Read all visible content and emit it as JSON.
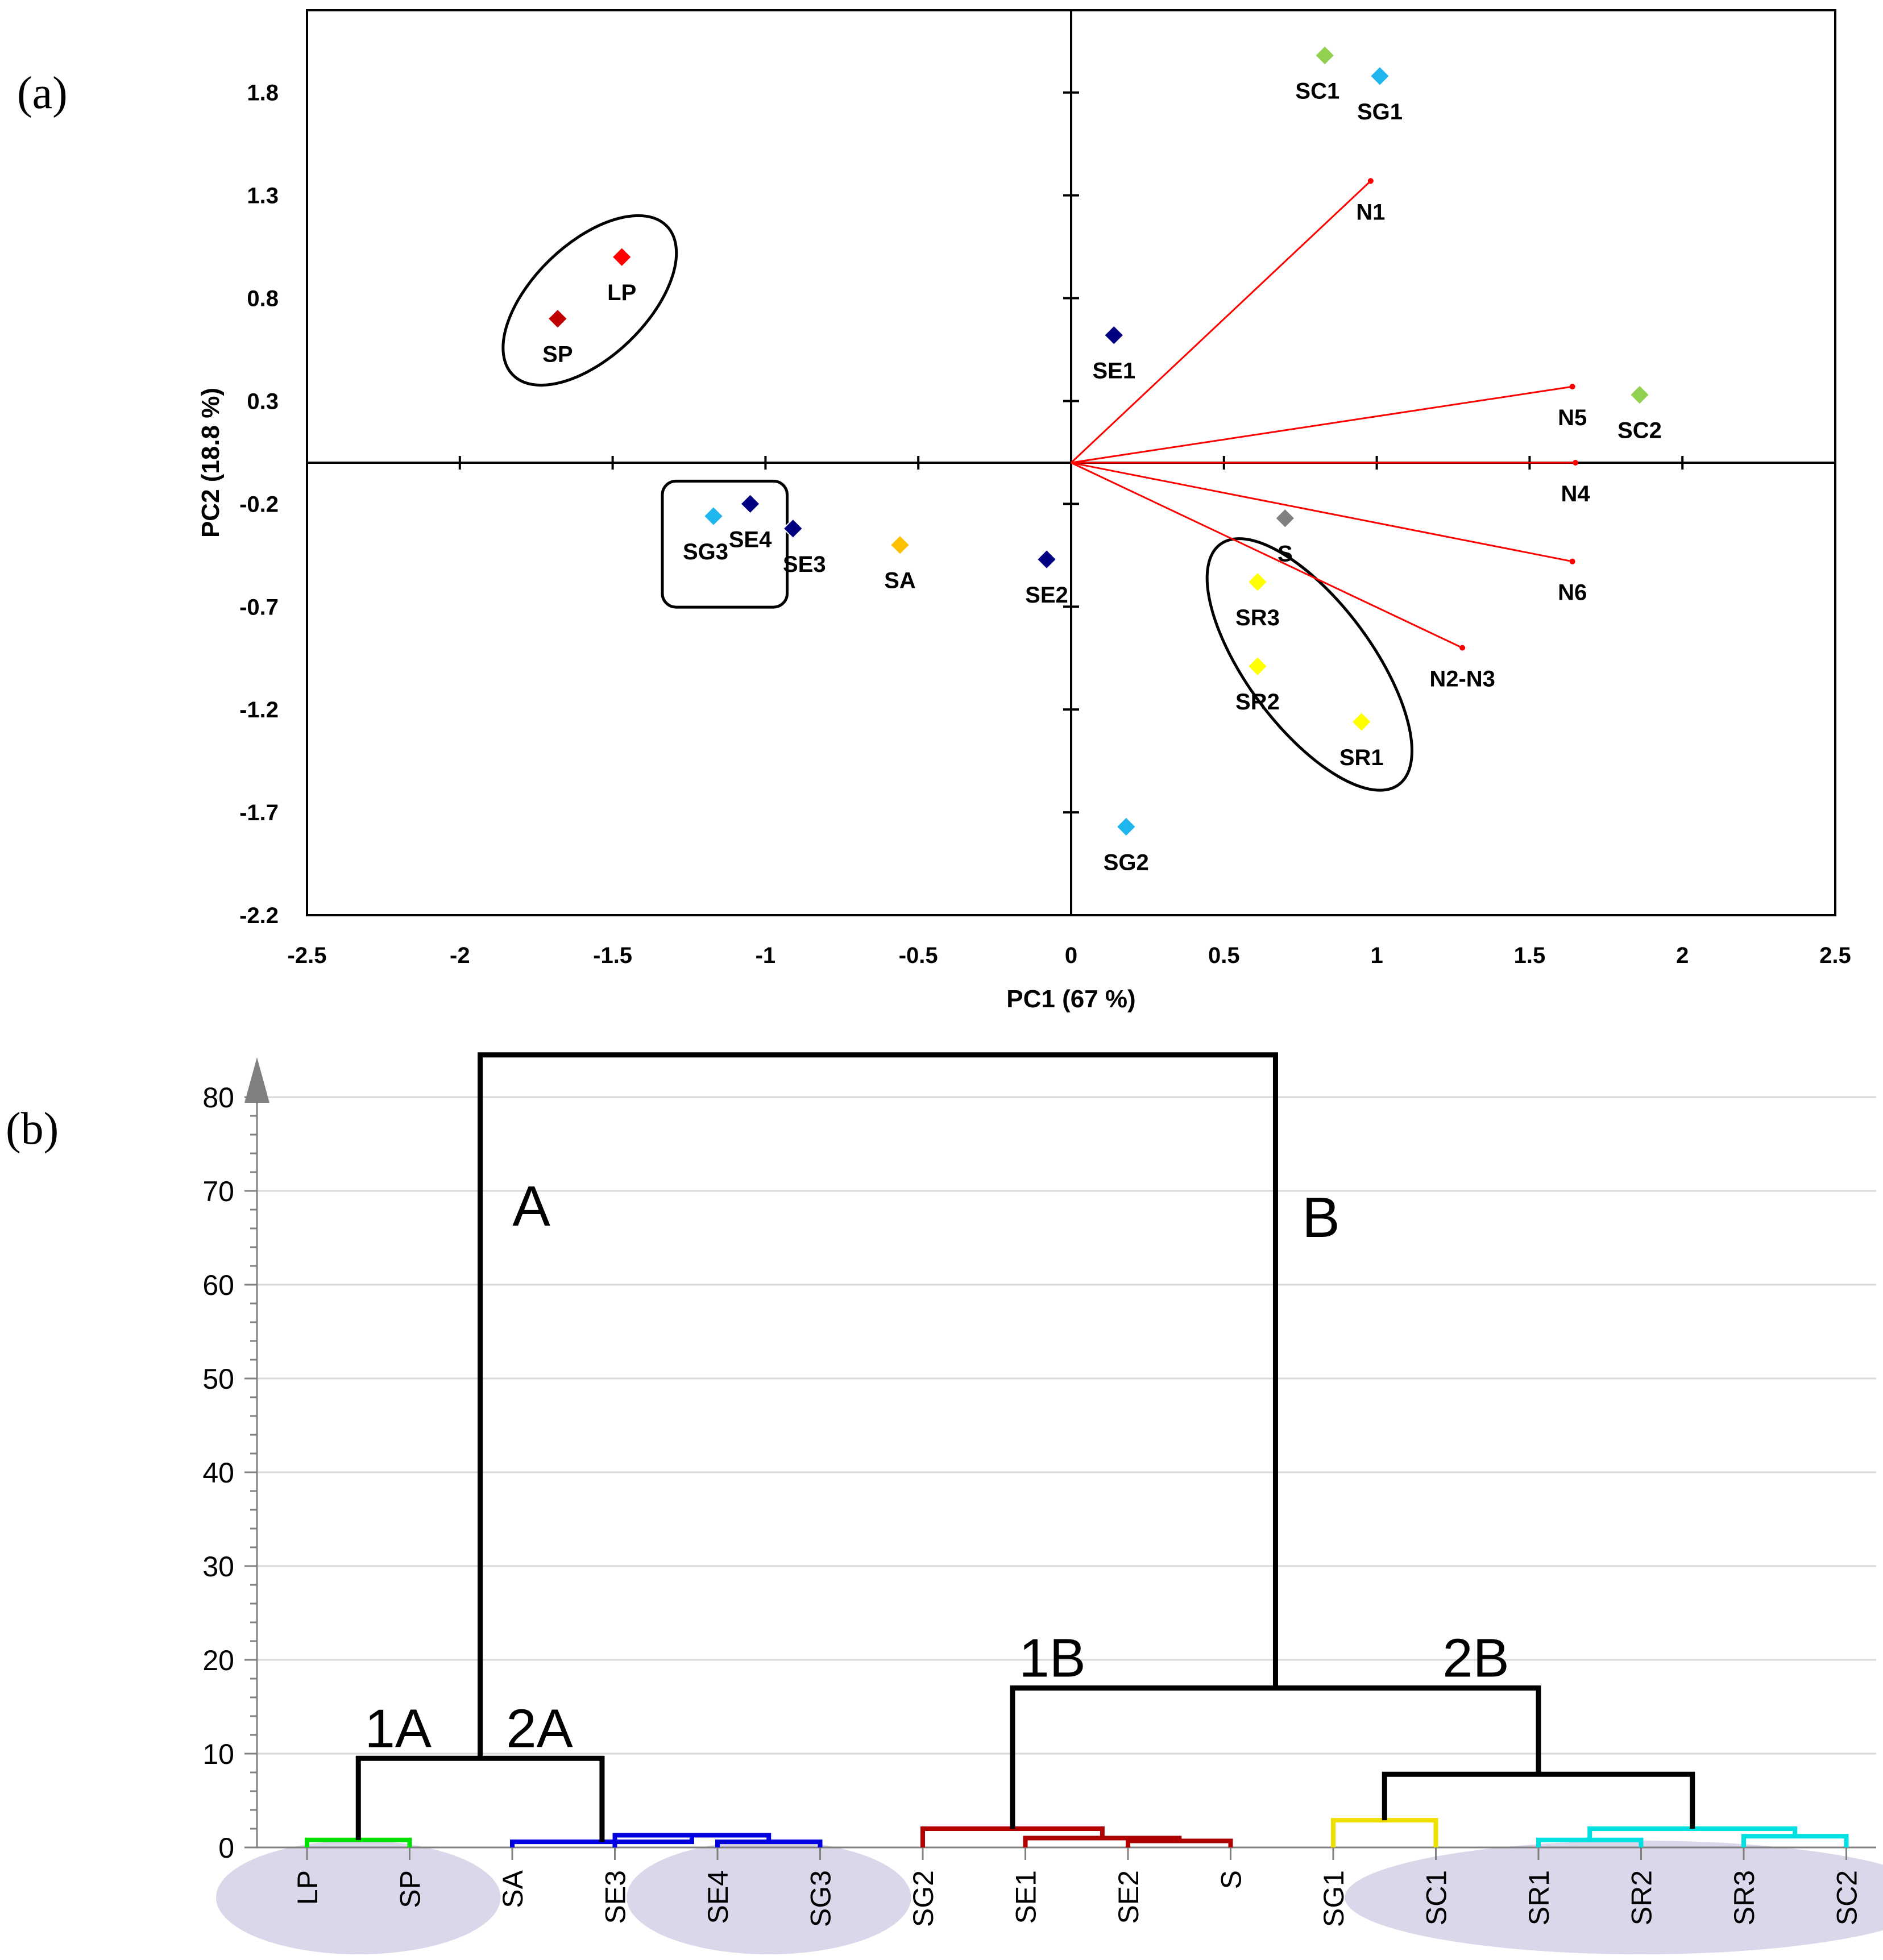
{
  "chart_data": [
    {
      "type": "scatter",
      "panel_label": "(a)",
      "title": "",
      "xlabel": "PC1 (67 %)",
      "ylabel": "PC2 (18.8 %)",
      "xlim": [
        -2.5,
        2.5
      ],
      "ylim": [
        -2.2,
        2.2
      ],
      "xticks": [
        -2.5,
        -2,
        -1.5,
        -1,
        -0.5,
        0,
        0.5,
        1,
        1.5,
        2,
        2.5
      ],
      "xtick_labels": [
        "-2.5",
        "-2",
        "-1.5",
        "-1",
        "-0.5",
        "0",
        "0.5",
        "1",
        "1.5",
        "2",
        "2.5"
      ],
      "yticks": [
        1.8,
        1.3,
        0.8,
        0.3,
        -0.2,
        -0.7,
        -1.2,
        -1.7,
        -2.2
      ],
      "ytick_labels": [
        "1.8",
        "1.3",
        "0.8",
        "0.3",
        "-0.2",
        "-0.7",
        "-1.2",
        "-1.7",
        "-2.2"
      ],
      "points": [
        {
          "label": "SC1",
          "x": 0.83,
          "y": 1.98,
          "color": "#92d050",
          "label_pos": "below-left"
        },
        {
          "label": "SG1",
          "x": 1.01,
          "y": 1.88,
          "color": "#1fb5ef",
          "label_pos": "below"
        },
        {
          "label": "LP",
          "x": -1.47,
          "y": 1.0,
          "color": "#ff0000",
          "label_pos": "below"
        },
        {
          "label": "SP",
          "x": -1.68,
          "y": 0.7,
          "color": "#c00000",
          "label_pos": "below"
        },
        {
          "label": "SE1",
          "x": 0.14,
          "y": 0.62,
          "color": "#000080",
          "label_pos": "below"
        },
        {
          "label": "SC2",
          "x": 1.86,
          "y": 0.33,
          "color": "#92d050",
          "label_pos": "below"
        },
        {
          "label": "SG3",
          "x": -1.17,
          "y": -0.26,
          "color": "#1fb5ef",
          "label_pos": "below-left"
        },
        {
          "label": "SE4",
          "x": -1.05,
          "y": -0.2,
          "color": "#000080",
          "label_pos": "below"
        },
        {
          "label": "SE3",
          "x": -0.91,
          "y": -0.32,
          "color": "#000080",
          "label_pos": "below-right"
        },
        {
          "label": "SA",
          "x": -0.56,
          "y": -0.4,
          "color": "#ffc000",
          "label_pos": "below"
        },
        {
          "label": "SE2",
          "x": -0.08,
          "y": -0.47,
          "color": "#000080",
          "label_pos": "below"
        },
        {
          "label": "S",
          "x": 0.7,
          "y": -0.27,
          "color": "#808080",
          "label_pos": "below"
        },
        {
          "label": "SR3",
          "x": 0.61,
          "y": -0.58,
          "color": "#ffff00",
          "label_pos": "below"
        },
        {
          "label": "SR2",
          "x": 0.61,
          "y": -0.99,
          "color": "#ffff00",
          "label_pos": "below"
        },
        {
          "label": "SR1",
          "x": 0.95,
          "y": -1.26,
          "color": "#ffff00",
          "label_pos": "below"
        },
        {
          "label": "SG2",
          "x": 0.18,
          "y": -1.77,
          "color": "#1fb5ef",
          "label_pos": "below"
        }
      ],
      "vectors": [
        {
          "label": "N1",
          "x": 0.98,
          "y": 1.37
        },
        {
          "label": "N5",
          "x": 1.64,
          "y": 0.37
        },
        {
          "label": "N4",
          "x": 1.65,
          "y": 0.0
        },
        {
          "label": "N6",
          "x": 1.64,
          "y": -0.48
        },
        {
          "label": "N2-N3",
          "x": 1.28,
          "y": -0.9
        }
      ],
      "groups": [
        {
          "shape": "ellipse",
          "members": [
            "LP",
            "SP"
          ]
        },
        {
          "shape": "rectangle",
          "members": [
            "SG3",
            "SE4"
          ]
        },
        {
          "shape": "ellipse",
          "members": [
            "SR3",
            "SR2",
            "SR1"
          ]
        }
      ],
      "colors": {
        "vector": "#ff0000",
        "axis": "#000000"
      }
    },
    {
      "type": "dendrogram",
      "panel_label": "(b)",
      "title": "",
      "xlabel": "",
      "ylabel": "",
      "ylim": [
        0,
        85
      ],
      "yticks": [
        0,
        10,
        20,
        30,
        40,
        50,
        60,
        70,
        80
      ],
      "ytick_labels": [
        "0",
        "10",
        "20",
        "30",
        "40",
        "50",
        "60",
        "70",
        "80"
      ],
      "leaves": [
        "LP",
        "SP",
        "SA",
        "SE3",
        "SE4",
        "SG3",
        "SG2",
        "SE1",
        "SE2",
        "S",
        "SG1",
        "SC1",
        "SR1",
        "SR2",
        "SR3",
        "SC2"
      ],
      "highlighted_leaf_groups": [
        [
          "LP",
          "SP"
        ],
        [
          "SE4",
          "SG3"
        ],
        [
          "SC1",
          "SR1",
          "SR2",
          "SR3",
          "SC2"
        ]
      ],
      "merges": [
        {
          "id": "m1",
          "a": "LP",
          "b": "SP",
          "height": 0.8,
          "color": "#00e000"
        },
        {
          "id": "m2",
          "a": "SE4",
          "b": "SG3",
          "height": 0.6,
          "color": "#0000e0"
        },
        {
          "id": "m3",
          "a": "SE3",
          "b": "m2",
          "height": 1.3,
          "color": "#0000e0"
        },
        {
          "id": "m4",
          "a": "SA",
          "b": "m3",
          "height": 0.6,
          "color": "#0000e0"
        },
        {
          "id": "m5",
          "a": "m1",
          "b": "m4",
          "height": 9.5,
          "color": "#000000"
        },
        {
          "id": "m6",
          "a": "SE2",
          "b": "S",
          "height": 0.7,
          "color": "#b00000"
        },
        {
          "id": "m7",
          "a": "SE1",
          "b": "m6",
          "height": 1.0,
          "color": "#b00000"
        },
        {
          "id": "m8",
          "a": "SG2",
          "b": "m7",
          "height": 2.0,
          "color": "#b00000"
        },
        {
          "id": "m9",
          "a": "SG1",
          "b": "SC1",
          "height": 2.9,
          "color": "#f0e000"
        },
        {
          "id": "m10",
          "a": "SR1",
          "b": "SR2",
          "height": 0.8,
          "color": "#00e0e0"
        },
        {
          "id": "m11",
          "a": "SR3",
          "b": "SC2",
          "height": 1.2,
          "color": "#00e0e0"
        },
        {
          "id": "m12",
          "a": "m10",
          "b": "m11",
          "height": 2.0,
          "color": "#00e0e0"
        },
        {
          "id": "m13",
          "a": "m9",
          "b": "m12",
          "height": 7.8,
          "color": "#000000"
        },
        {
          "id": "m14",
          "a": "m8",
          "b": "m13",
          "height": 17.0,
          "color": "#000000"
        },
        {
          "id": "m15",
          "a": "m5",
          "b": "m14",
          "height": 84.5,
          "color": "#000000"
        }
      ],
      "cluster_labels": [
        {
          "text": "A",
          "near": "m15",
          "side": "left"
        },
        {
          "text": "B",
          "near": "m15",
          "side": "right"
        },
        {
          "text": "1A",
          "near": "m5",
          "side": "left"
        },
        {
          "text": "2A",
          "near": "m5",
          "side": "right"
        },
        {
          "text": "1B",
          "near": "m14",
          "side": "left"
        },
        {
          "text": "2B",
          "near": "m14",
          "side": "right"
        }
      ],
      "colors": {
        "grid": "#d9d9d9",
        "axis": "#808080",
        "highlight": "#dcd6ea"
      }
    }
  ]
}
